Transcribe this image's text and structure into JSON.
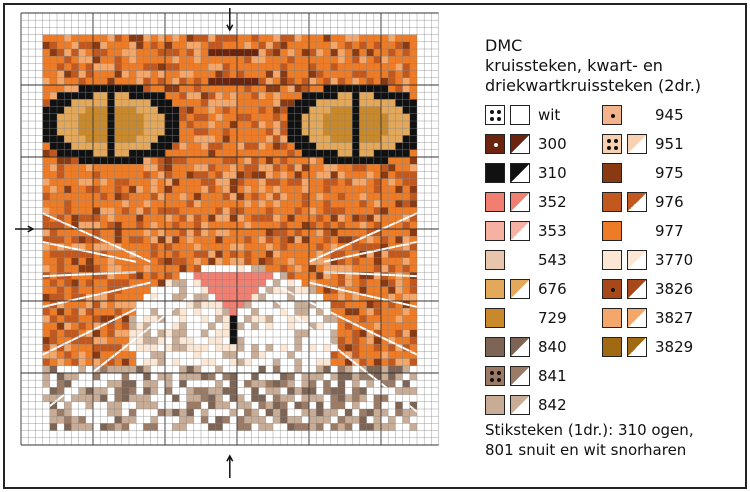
{
  "legend": {
    "brand": "DMC",
    "subtitle_line1": "kruissteken, kwart- en",
    "subtitle_line2": "driekwartkruissteken (2dr.)",
    "left_column": [
      {
        "code": "wit",
        "color": "#ffffff",
        "symbol": "dots"
      },
      {
        "code": "300",
        "color": "#6b2410",
        "symbol": "dot"
      },
      {
        "code": "310",
        "color": "#111111",
        "symbol": "solid"
      },
      {
        "code": "352",
        "color": "#f07f72",
        "symbol": "solid"
      },
      {
        "code": "353",
        "color": "#f7b1a3",
        "symbol": "solid"
      },
      {
        "code": "543",
        "color": "#e8c6ad",
        "symbol": "solid"
      },
      {
        "code": "676",
        "color": "#e3a85a",
        "symbol": "solid"
      },
      {
        "code": "729",
        "color": "#c9892b",
        "symbol": "solid"
      },
      {
        "code": "840",
        "color": "#7d6454",
        "symbol": "solid"
      },
      {
        "code": "841",
        "color": "#9c7b66",
        "symbol": "dots"
      },
      {
        "code": "842",
        "color": "#c9ac95",
        "symbol": "arches"
      }
    ],
    "right_column": [
      {
        "code": "945",
        "color": "#f3b48d",
        "symbol": "dot"
      },
      {
        "code": "951",
        "color": "#f7d1b1",
        "symbol": "dots"
      },
      {
        "code": "975",
        "color": "#8a3a12",
        "symbol": "solid"
      },
      {
        "code": "976",
        "color": "#c2581d",
        "symbol": "bars"
      },
      {
        "code": "977",
        "color": "#ee7b26",
        "symbol": "solid"
      },
      {
        "code": "3770",
        "color": "#fbe7d4",
        "symbol": "dashes"
      },
      {
        "code": "3826",
        "color": "#a8471a",
        "symbol": "dot"
      },
      {
        "code": "3827",
        "color": "#f4a76a",
        "symbol": "solid"
      },
      {
        "code": "3829",
        "color": "#a06a14",
        "symbol": "solid"
      }
    ],
    "stitch_line1": "Stiksteken (1dr.): 310 ogen,",
    "stitch_line2": "801 snuit en wit snorharen"
  }
}
